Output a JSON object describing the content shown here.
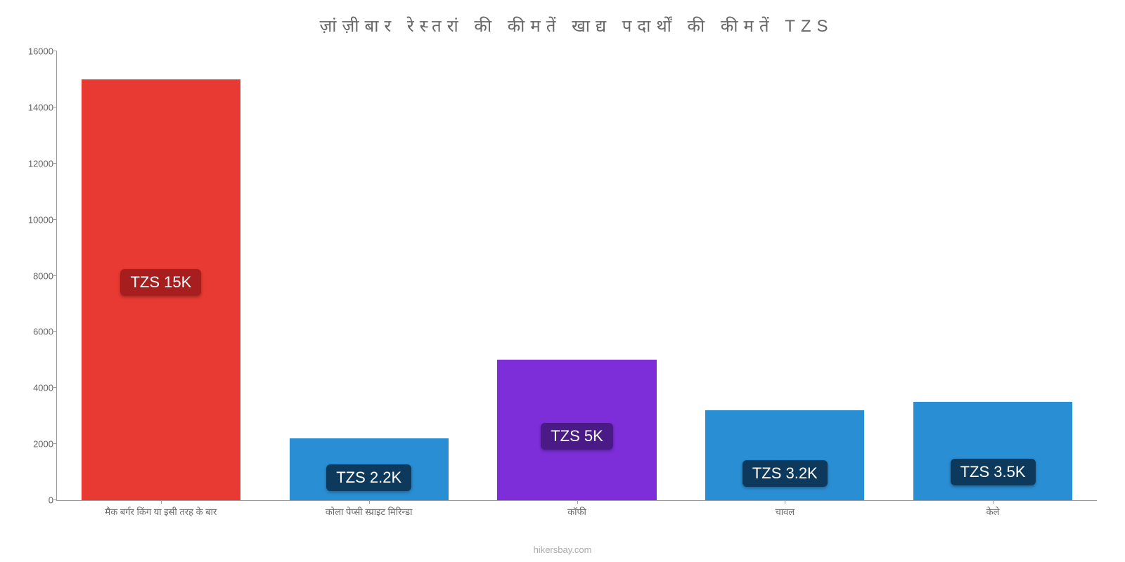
{
  "chart": {
    "type": "bar",
    "title": "ज़ांज़ीबार रेस्तरां की कीमतें खाद्य पदार्थों की कीमतें TZS",
    "title_fontsize": 24,
    "title_color": "#666666",
    "background_color": "#ffffff",
    "ylim": [
      0,
      16000
    ],
    "ytick_step": 2000,
    "yticks": [
      0,
      2000,
      4000,
      6000,
      8000,
      10000,
      12000,
      14000,
      16000
    ],
    "categories": [
      "मैक बर्गर किंग या इसी तरह के बार",
      "कोला पेप्सी स्प्राइट मिरिन्डा",
      "कॉफी",
      "चावल",
      "केले"
    ],
    "values": [
      15000,
      2200,
      5000,
      3200,
      3500
    ],
    "bar_colors": [
      "#e83a32",
      "#2a8ed4",
      "#7d2ed9",
      "#2a8ed4",
      "#2a8ed4"
    ],
    "value_labels": [
      "TZS 15K",
      "TZS 2.2K",
      "TZS 5K",
      "TZS 3.2K",
      "TZS 3.5K"
    ],
    "label_bg_colors": [
      "#a71e1e",
      "#0d3a5c",
      "#4a1a87",
      "#0d3a5c",
      "#0d3a5c"
    ],
    "label_fontsize": 22,
    "label_color": "#ffffff",
    "axis_color": "#999999",
    "tick_color": "#666666",
    "tick_fontsize": 13,
    "bar_width": 0.85,
    "attribution": "hikersbay.com",
    "attribution_color": "#aaaaaa"
  }
}
